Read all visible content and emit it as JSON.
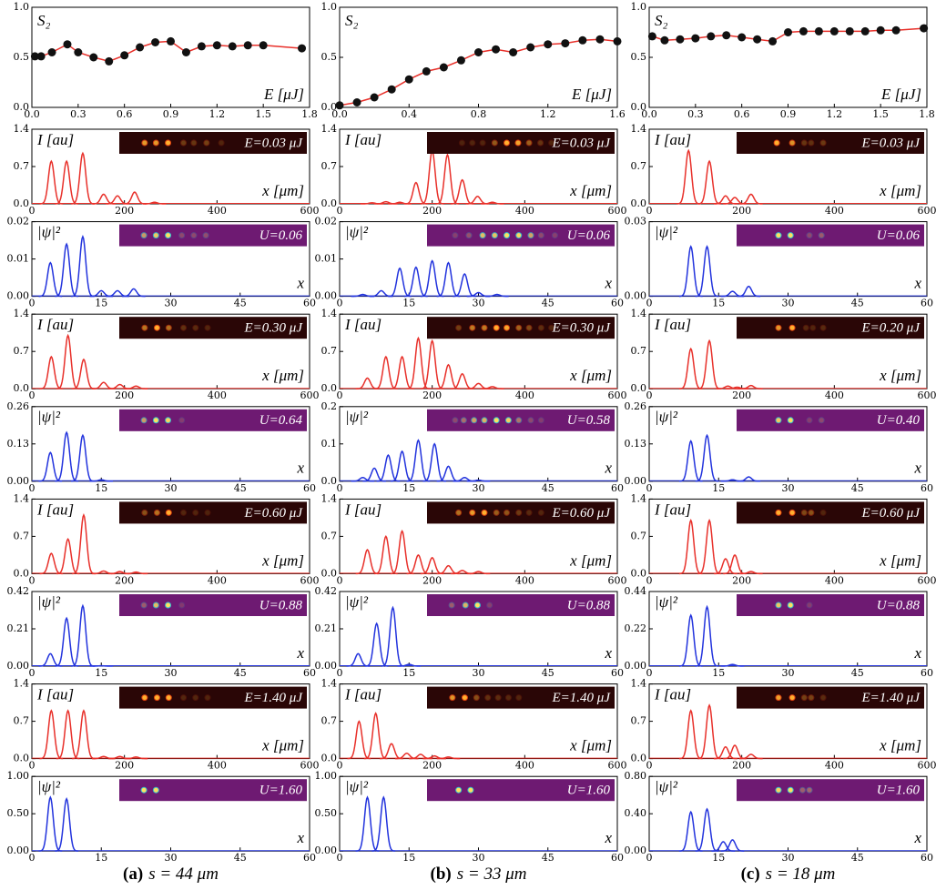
{
  "chart_data": [
    {
      "type": "scatter-line",
      "ylabel": "S₂",
      "xlabel": "E [μJ]",
      "color": "#e8302a",
      "marker_color": "#111111",
      "x": [
        0.02,
        0.06,
        0.13,
        0.23,
        0.3,
        0.4,
        0.5,
        0.6,
        0.7,
        0.8,
        0.9,
        1.0,
        1.1,
        1.2,
        1.3,
        1.4,
        1.5,
        1.75
      ],
      "values": [
        0.51,
        0.51,
        0.55,
        0.63,
        0.55,
        0.5,
        0.46,
        0.52,
        0.6,
        0.65,
        0.66,
        0.55,
        0.61,
        0.62,
        0.61,
        0.62,
        0.62,
        0.59
      ],
      "xlim": [
        0,
        1.8
      ],
      "ylim": [
        0,
        1
      ],
      "xticks": [
        {
          "value": 0,
          "label": "0.0"
        },
        0.3,
        0.6,
        0.9,
        1.2,
        1.5,
        1.8
      ],
      "yticks": [
        {
          "value": 0,
          "label": "0.0"
        },
        0.5,
        {
          "value": 1,
          "label": "1.0"
        }
      ]
    },
    {
      "type": "scatter-line",
      "ylabel": "S₂",
      "xlabel": "E [μJ]",
      "color": "#e8302a",
      "marker_color": "#111111",
      "x": [
        0.0,
        0.1,
        0.2,
        0.3,
        0.4,
        0.5,
        0.6,
        0.7,
        0.8,
        0.9,
        1.0,
        1.1,
        1.2,
        1.3,
        1.4,
        1.5,
        1.6
      ],
      "values": [
        0.02,
        0.05,
        0.1,
        0.18,
        0.28,
        0.36,
        0.4,
        0.47,
        0.55,
        0.58,
        0.55,
        0.6,
        0.63,
        0.64,
        0.67,
        0.68,
        0.66
      ],
      "xlim": [
        0,
        1.6
      ],
      "ylim": [
        0,
        1
      ],
      "xticks": [
        {
          "value": 0,
          "label": "0.0"
        },
        0.4,
        0.8,
        1.2,
        1.6
      ],
      "yticks": [
        {
          "value": 0,
          "label": "0.0"
        },
        0.5,
        {
          "value": 1,
          "label": "1.0"
        }
      ]
    },
    {
      "type": "scatter-line",
      "ylabel": "S₂",
      "xlabel": "E [μJ]",
      "color": "#e8302a",
      "marker_color": "#111111",
      "x": [
        0.02,
        0.1,
        0.2,
        0.3,
        0.4,
        0.5,
        0.6,
        0.7,
        0.8,
        0.9,
        1.0,
        1.1,
        1.2,
        1.3,
        1.4,
        1.5,
        1.6,
        1.78
      ],
      "values": [
        0.71,
        0.67,
        0.68,
        0.69,
        0.71,
        0.72,
        0.7,
        0.68,
        0.66,
        0.75,
        0.76,
        0.76,
        0.76,
        0.76,
        0.76,
        0.77,
        0.77,
        0.79
      ],
      "xlim": [
        0,
        1.8
      ],
      "ylim": [
        0,
        1
      ],
      "xticks": [
        {
          "value": 0,
          "label": "0.0"
        },
        0.3,
        0.6,
        0.9,
        1.2,
        1.5,
        1.8
      ],
      "yticks": [
        {
          "value": 0,
          "label": "0.0"
        },
        0.5,
        {
          "value": 1,
          "label": "1.0"
        }
      ]
    },
    {
      "type": "peaks",
      "ylabel": "I [au]",
      "xlabel": "x [μm]",
      "inset": "E=0.03 μJ",
      "color": "#e8302a",
      "inset_color": "#2a0606",
      "x": [
        42,
        75,
        110,
        155,
        185,
        222,
        265
      ],
      "values": [
        0.8,
        0.8,
        0.95,
        0.18,
        0.15,
        0.22,
        0.03
      ],
      "xlim": [
        0,
        600
      ],
      "ylim": [
        0,
        1.4
      ],
      "xticks": [
        0,
        200,
        400,
        600
      ],
      "yticks": [
        {
          "value": 0,
          "label": "0.0"
        },
        0.7,
        1.4
      ]
    },
    {
      "type": "peaks",
      "ylabel": "I [au]",
      "xlabel": "x [μm]",
      "inset": "E=0.03 μJ",
      "color": "#e8302a",
      "inset_color": "#2a0606",
      "x": [
        70,
        100,
        130,
        165,
        200,
        233,
        265,
        298,
        330
      ],
      "values": [
        0.02,
        0.04,
        0.03,
        0.4,
        1.0,
        0.92,
        0.45,
        0.14,
        0.03
      ],
      "xlim": [
        0,
        600
      ],
      "ylim": [
        0,
        1.4
      ],
      "xticks": [
        0,
        200,
        400,
        600
      ],
      "yticks": [
        {
          "value": 0,
          "label": "0.0"
        },
        0.7,
        1.4
      ]
    },
    {
      "type": "peaks",
      "ylabel": "I [au]",
      "xlabel": "x [μm]",
      "inset": "E=0.03 μJ",
      "color": "#e8302a",
      "inset_color": "#2a0606",
      "x": [
        85,
        130,
        165,
        185,
        220
      ],
      "values": [
        1.0,
        0.8,
        0.15,
        0.12,
        0.18
      ],
      "xlim": [
        0,
        600
      ],
      "ylim": [
        0,
        1.4
      ],
      "xticks": [
        0,
        200,
        400,
        600
      ],
      "yticks": [
        {
          "value": 0,
          "label": "0.0"
        },
        0.7,
        1.4
      ]
    },
    {
      "type": "peaks",
      "ylabel": "|ψ|²",
      "xlabel": "x",
      "inset": "U=0.06",
      "color": "#2233dd",
      "inset_color": "#6e1a72",
      "x": [
        4,
        7.5,
        11,
        15,
        18.5,
        22
      ],
      "values": [
        0.009,
        0.014,
        0.016,
        0.0015,
        0.0015,
        0.002
      ],
      "xlim": [
        0,
        60
      ],
      "ylim": [
        0,
        0.02
      ],
      "xticks": [
        0,
        15,
        30,
        45,
        60
      ],
      "yticks": [
        {
          "value": 0,
          "label": "0.00"
        },
        0.01,
        0.02
      ]
    },
    {
      "type": "peaks",
      "ylabel": "|ψ|²",
      "xlabel": "x",
      "inset": "U=0.06",
      "color": "#2233dd",
      "inset_color": "#6e1a72",
      "x": [
        5,
        9,
        13,
        16.5,
        20,
        23.5,
        27,
        30,
        34
      ],
      "values": [
        0.0005,
        0.0015,
        0.0075,
        0.0078,
        0.0095,
        0.009,
        0.006,
        0.001,
        0.0005
      ],
      "xlim": [
        0,
        60
      ],
      "ylim": [
        0,
        0.02
      ],
      "xticks": [
        0,
        15,
        30,
        45,
        60
      ],
      "yticks": [
        {
          "value": 0,
          "label": "0.00"
        },
        0.01,
        0.02
      ]
    },
    {
      "type": "peaks",
      "ylabel": "|ψ|²",
      "xlabel": "x",
      "inset": "U=0.06",
      "color": "#2233dd",
      "inset_color": "#6e1a72",
      "x": [
        9,
        12.5,
        18,
        21.5
      ],
      "values": [
        0.02,
        0.02,
        0.002,
        0.004
      ],
      "xlim": [
        0,
        60
      ],
      "ylim": [
        0,
        0.03
      ],
      "xticks": [
        0,
        15,
        30,
        45,
        60
      ],
      "yticks": [
        {
          "value": 0,
          "label": "0.00"
        },
        0.03
      ]
    },
    {
      "type": "peaks",
      "ylabel": "I [au]",
      "xlabel": "x [μm]",
      "inset": "E=0.30 μJ",
      "color": "#e8302a",
      "inset_color": "#2a0606",
      "x": [
        42,
        78,
        112,
        155,
        190,
        225
      ],
      "values": [
        0.6,
        1.0,
        0.55,
        0.12,
        0.08,
        0.05
      ],
      "xlim": [
        0,
        600
      ],
      "ylim": [
        0,
        1.4
      ],
      "xticks": [
        0,
        200,
        400,
        600
      ],
      "yticks": [
        {
          "value": 0,
          "label": "0.0"
        },
        0.7,
        1.4
      ]
    },
    {
      "type": "peaks",
      "ylabel": "I [au]",
      "xlabel": "x [μm]",
      "inset": "E=0.30 μJ",
      "color": "#e8302a",
      "inset_color": "#2a0606",
      "x": [
        60,
        100,
        135,
        170,
        200,
        235,
        265,
        300,
        330
      ],
      "values": [
        0.2,
        0.6,
        0.6,
        0.95,
        0.9,
        0.45,
        0.28,
        0.1,
        0.04
      ],
      "xlim": [
        0,
        600
      ],
      "ylim": [
        0,
        1.4
      ],
      "xticks": [
        0,
        200,
        400,
        600
      ],
      "yticks": [
        {
          "value": 0,
          "label": "0.0"
        },
        0.7,
        1.4
      ]
    },
    {
      "type": "peaks",
      "ylabel": "I [au]",
      "xlabel": "x [μm]",
      "inset": "E=0.20 μJ",
      "color": "#e8302a",
      "inset_color": "#2a0606",
      "x": [
        90,
        130,
        170,
        190,
        220
      ],
      "values": [
        0.75,
        0.9,
        0.05,
        0.03,
        0.06
      ],
      "xlim": [
        0,
        600
      ],
      "ylim": [
        0,
        1.4
      ],
      "xticks": [
        0,
        200,
        400,
        600
      ],
      "yticks": [
        {
          "value": 0,
          "label": "0.0"
        },
        0.7,
        1.4
      ]
    },
    {
      "type": "peaks",
      "ylabel": "|ψ|²",
      "xlabel": "x",
      "inset": "U=0.64",
      "color": "#2233dd",
      "inset_color": "#6e1a72",
      "x": [
        4,
        7.5,
        11,
        15
      ],
      "values": [
        0.1,
        0.17,
        0.16,
        0.005
      ],
      "xlim": [
        0,
        60
      ],
      "ylim": [
        0,
        0.26
      ],
      "xticks": [
        0,
        15,
        30,
        45,
        60
      ],
      "yticks": [
        {
          "value": 0,
          "label": "0.00"
        },
        0.13,
        0.26
      ]
    },
    {
      "type": "peaks",
      "ylabel": "|ψ|²",
      "xlabel": "x",
      "inset": "U=0.58",
      "color": "#2233dd",
      "inset_color": "#6e1a72",
      "x": [
        5,
        7.5,
        10.5,
        13.5,
        17,
        20.5,
        23.5,
        27,
        30
      ],
      "values": [
        0.01,
        0.035,
        0.07,
        0.08,
        0.11,
        0.1,
        0.04,
        0.01,
        0.003
      ],
      "xlim": [
        0,
        60
      ],
      "ylim": [
        0,
        0.2
      ],
      "xticks": [
        0,
        15,
        30,
        45,
        60
      ],
      "yticks": [
        {
          "value": 0,
          "label": "0.0"
        },
        0.1,
        0.2
      ]
    },
    {
      "type": "peaks",
      "ylabel": "|ψ|²",
      "xlabel": "x",
      "inset": "U=0.40",
      "color": "#2233dd",
      "inset_color": "#6e1a72",
      "x": [
        9,
        12.5,
        18,
        21.5
      ],
      "values": [
        0.14,
        0.16,
        0.005,
        0.015
      ],
      "xlim": [
        0,
        60
      ],
      "ylim": [
        0,
        0.26
      ],
      "xticks": [
        0,
        15,
        30,
        45,
        60
      ],
      "yticks": [
        {
          "value": 0,
          "label": "0.00"
        },
        0.13,
        0.26
      ]
    },
    {
      "type": "peaks",
      "ylabel": "I [au]",
      "xlabel": "x [μm]",
      "inset": "E=0.60 μJ",
      "color": "#e8302a",
      "inset_color": "#2a0606",
      "x": [
        42,
        78,
        112,
        155,
        190,
        225
      ],
      "values": [
        0.38,
        0.65,
        1.1,
        0.05,
        0.04,
        0.03
      ],
      "xlim": [
        0,
        600
      ],
      "ylim": [
        0,
        1.4
      ],
      "xticks": [
        0,
        200,
        400,
        600
      ],
      "yticks": [
        {
          "value": 0,
          "label": "0.0"
        },
        0.7,
        1.4
      ]
    },
    {
      "type": "peaks",
      "ylabel": "I [au]",
      "xlabel": "x [μm]",
      "inset": "E=0.60 μJ",
      "color": "#e8302a",
      "inset_color": "#2a0606",
      "x": [
        60,
        100,
        135,
        170,
        200,
        235,
        265,
        300
      ],
      "values": [
        0.45,
        0.7,
        0.8,
        0.35,
        0.3,
        0.15,
        0.06,
        0.04
      ],
      "xlim": [
        0,
        600
      ],
      "ylim": [
        0,
        1.4
      ],
      "xticks": [
        0,
        200,
        400,
        600
      ],
      "yticks": [
        {
          "value": 0,
          "label": "0.0"
        },
        0.7,
        1.4
      ]
    },
    {
      "type": "peaks",
      "ylabel": "I [au]",
      "xlabel": "x [μm]",
      "inset": "E=0.60 μJ",
      "color": "#e8302a",
      "inset_color": "#2a0606",
      "x": [
        90,
        130,
        165,
        185,
        220
      ],
      "values": [
        1.0,
        1.0,
        0.28,
        0.35,
        0.04
      ],
      "xlim": [
        0,
        600
      ],
      "ylim": [
        0,
        1.4
      ],
      "xticks": [
        0,
        200,
        400,
        600
      ],
      "yticks": [
        {
          "value": 0,
          "label": "0.0"
        },
        0.7,
        1.4
      ]
    },
    {
      "type": "peaks",
      "ylabel": "|ψ|²",
      "xlabel": "x",
      "inset": "U=0.88",
      "color": "#2233dd",
      "inset_color": "#6e1a72",
      "x": [
        4,
        7.5,
        11,
        15
      ],
      "values": [
        0.07,
        0.27,
        0.34,
        0.002
      ],
      "xlim": [
        0,
        60
      ],
      "ylim": [
        0,
        0.42
      ],
      "xticks": [
        0,
        15,
        30,
        45,
        60
      ],
      "yticks": [
        {
          "value": 0,
          "label": "0.00"
        },
        0.21,
        0.42
      ]
    },
    {
      "type": "peaks",
      "ylabel": "|ψ|²",
      "xlabel": "x",
      "inset": "U=0.88",
      "color": "#2233dd",
      "inset_color": "#6e1a72",
      "x": [
        4,
        8,
        11.5,
        15
      ],
      "values": [
        0.07,
        0.24,
        0.33,
        0.01
      ],
      "xlim": [
        0,
        60
      ],
      "ylim": [
        0,
        0.42
      ],
      "xticks": [
        0,
        15,
        30,
        45,
        60
      ],
      "yticks": [
        {
          "value": 0,
          "label": "0.00"
        },
        0.21,
        0.42
      ]
    },
    {
      "type": "peaks",
      "ylabel": "|ψ|²",
      "xlabel": "x",
      "inset": "U=0.88",
      "color": "#2233dd",
      "inset_color": "#6e1a72",
      "x": [
        9,
        12.5,
        18
      ],
      "values": [
        0.3,
        0.35,
        0.01
      ],
      "xlim": [
        0,
        60
      ],
      "ylim": [
        0,
        0.44
      ],
      "xticks": [
        0,
        15,
        30,
        45,
        60
      ],
      "yticks": [
        {
          "value": 0,
          "label": "0.00"
        },
        0.22,
        0.44
      ]
    },
    {
      "type": "peaks",
      "ylabel": "I [au]",
      "xlabel": "x [μm]",
      "inset": "E=1.40 μJ",
      "color": "#e8302a",
      "inset_color": "#2a0606",
      "x": [
        42,
        78,
        112,
        155,
        190,
        225
      ],
      "values": [
        0.9,
        0.9,
        0.9,
        0.04,
        0.04,
        0.03
      ],
      "xlim": [
        0,
        600
      ],
      "ylim": [
        0,
        1.4
      ],
      "xticks": [
        0,
        200,
        400,
        600
      ],
      "yticks": [
        {
          "value": 0,
          "label": "0.0"
        },
        0.7,
        1.4
      ]
    },
    {
      "type": "peaks",
      "ylabel": "I [au]",
      "xlabel": "x [μm]",
      "inset": "E=1.40 μJ",
      "color": "#e8302a",
      "inset_color": "#2a0606",
      "x": [
        42,
        78,
        112,
        145,
        175,
        205,
        235
      ],
      "values": [
        0.7,
        0.85,
        0.28,
        0.1,
        0.08,
        0.05,
        0.03
      ],
      "xlim": [
        0,
        600
      ],
      "ylim": [
        0,
        1.4
      ],
      "xticks": [
        0,
        200,
        400,
        600
      ],
      "yticks": [
        {
          "value": 0,
          "label": "0.0"
        },
        0.7,
        1.4
      ]
    },
    {
      "type": "peaks",
      "ylabel": "I [au]",
      "xlabel": "x [μm]",
      "inset": "E=1.40 μJ",
      "color": "#e8302a",
      "inset_color": "#2a0606",
      "x": [
        90,
        130,
        165,
        185,
        220
      ],
      "values": [
        0.9,
        1.0,
        0.22,
        0.25,
        0.08
      ],
      "xlim": [
        0,
        600
      ],
      "ylim": [
        0,
        1.4
      ],
      "xticks": [
        0,
        200,
        400,
        600
      ],
      "yticks": [
        {
          "value": 0,
          "label": "0.0"
        },
        0.7,
        1.4
      ]
    },
    {
      "type": "peaks",
      "ylabel": "|ψ|²",
      "xlabel": "x",
      "inset": "U=1.60",
      "color": "#2233dd",
      "inset_color": "#6e1a72",
      "x": [
        4,
        7.5
      ],
      "values": [
        0.72,
        0.7
      ],
      "xlim": [
        0,
        60
      ],
      "ylim": [
        0,
        1
      ],
      "xticks": [
        0,
        15,
        30,
        45,
        60
      ],
      "yticks": [
        {
          "value": 0,
          "label": "0.00"
        },
        {
          "value": 0.5,
          "label": "0.50"
        },
        {
          "value": 1,
          "label": "1.00"
        }
      ]
    },
    {
      "type": "peaks",
      "ylabel": "|ψ|²",
      "xlabel": "x",
      "inset": "U=1.60",
      "color": "#2233dd",
      "inset_color": "#6e1a72",
      "x": [
        6,
        9.5
      ],
      "values": [
        0.72,
        0.72
      ],
      "xlim": [
        0,
        60
      ],
      "ylim": [
        0,
        1
      ],
      "xticks": [
        0,
        15,
        30,
        45,
        60
      ],
      "yticks": [
        {
          "value": 0,
          "label": "0.00"
        },
        {
          "value": 0.5,
          "label": "0.50"
        },
        {
          "value": 1,
          "label": "1.00"
        }
      ]
    },
    {
      "type": "peaks",
      "ylabel": "|ψ|²",
      "xlabel": "x",
      "inset": "U=1.60",
      "color": "#2233dd",
      "inset_color": "#6e1a72",
      "x": [
        9,
        12.5,
        16,
        18
      ],
      "values": [
        0.42,
        0.45,
        0.1,
        0.12
      ],
      "xlim": [
        0,
        60
      ],
      "ylim": [
        0,
        0.8
      ],
      "xticks": [
        0,
        15,
        30,
        45,
        60
      ],
      "yticks": [
        {
          "value": 0,
          "label": "0.00"
        },
        {
          "value": 0.4,
          "label": "0.40"
        },
        {
          "value": 0.8,
          "label": "0.80"
        }
      ]
    }
  ],
  "captions": [
    {
      "label": "(a)",
      "text": "s = 44 μm"
    },
    {
      "label": "(b)",
      "text": "s = 33 μm"
    },
    {
      "label": "(c)",
      "text": "s = 18 μm"
    }
  ]
}
